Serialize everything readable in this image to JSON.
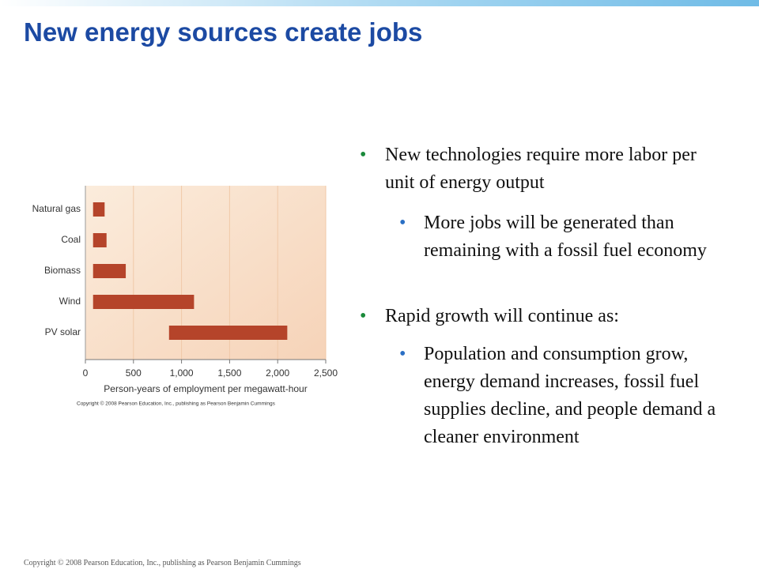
{
  "title": "New energy sources create jobs",
  "bullets": [
    {
      "text": "New technologies require more labor per unit of energy output",
      "sub": [
        "More jobs will be generated than remaining with a fossil fuel economy"
      ]
    },
    {
      "text": "Rapid growth will continue as:",
      "sub": [
        "Population and consumption grow, energy demand increases, fossil fuel supplies decline, and people demand a cleaner environment"
      ]
    }
  ],
  "footer": "Copyright © 2008 Pearson Education, Inc., publishing as Pearson Benjamin Cummings",
  "chart_data": {
    "type": "range-bar",
    "categories": [
      "Natural gas",
      "Coal",
      "Biomass",
      "Wind",
      "PV solar"
    ],
    "values_low": [
      80,
      80,
      80,
      80,
      870
    ],
    "values_high": [
      200,
      220,
      420,
      1130,
      2100
    ],
    "color": "#b5442a",
    "xlim": [
      0,
      2500
    ],
    "xticks": [
      0,
      500,
      {
        "value": 1000,
        "label": "1,000"
      },
      {
        "value": 1500,
        "label": "1,500"
      },
      {
        "value": 2000,
        "label": "2,000"
      },
      {
        "value": 2500,
        "label": "2,500"
      }
    ],
    "grid": true,
    "x_label": "Person-years of employment per megawatt-hour",
    "credit": "Copyright © 2008 Pearson Education, Inc., publishing as Pearson Benjamin Cummings"
  }
}
